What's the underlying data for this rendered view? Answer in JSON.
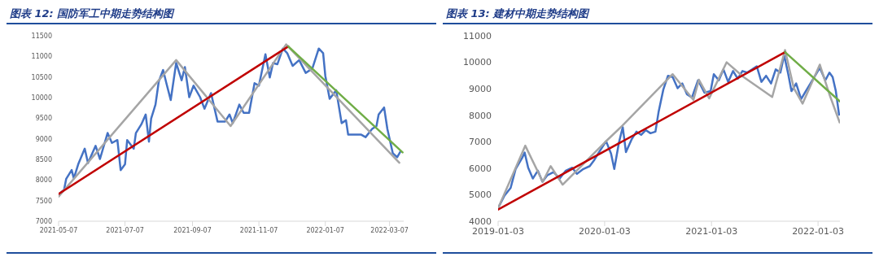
{
  "chart_data": [
    {
      "type": "line",
      "title": "图表 12:  国防军工中期走势结构图",
      "xlim": [
        "2021-05-07",
        "2022-03-20"
      ],
      "xticks": [
        "2021-05-07",
        "2021-07-07",
        "2021-09-07",
        "2021-11-07",
        "2022-01-07",
        "2022-03-07"
      ],
      "ylim": [
        7000,
        11500
      ],
      "yticks": [
        7000,
        7500,
        8000,
        8500,
        9000,
        9500,
        10000,
        10500,
        11000,
        11500
      ],
      "series": [
        {
          "color": "#4472c4",
          "x": [
            "2021-05-07",
            "2021-05-12",
            "2021-05-14",
            "2021-05-19",
            "2021-05-21",
            "2021-05-25",
            "2021-05-31",
            "2021-06-03",
            "2021-06-10",
            "2021-06-14",
            "2021-06-21",
            "2021-06-25",
            "2021-06-30",
            "2021-07-03",
            "2021-07-07",
            "2021-07-09",
            "2021-07-15",
            "2021-07-17",
            "2021-07-22",
            "2021-07-26",
            "2021-07-29",
            "2021-07-31",
            "2021-08-04",
            "2021-08-07",
            "2021-08-11",
            "2021-08-14",
            "2021-08-18",
            "2021-08-23",
            "2021-08-28",
            "2021-08-31",
            "2021-09-04",
            "2021-09-08",
            "2021-09-14",
            "2021-09-18",
            "2021-09-24",
            "2021-09-30",
            "2021-10-07",
            "2021-10-11",
            "2021-10-14",
            "2021-10-20",
            "2021-10-24",
            "2021-10-29",
            "2021-11-03",
            "2021-11-07",
            "2021-11-13",
            "2021-11-17",
            "2021-11-20",
            "2021-11-24",
            "2021-11-29",
            "2021-12-03",
            "2021-12-08",
            "2021-12-14",
            "2021-12-20",
            "2021-12-26",
            "2022-01-01",
            "2022-01-05",
            "2022-01-07",
            "2022-01-11",
            "2022-01-17",
            "2022-01-22",
            "2022-01-26",
            "2022-01-28",
            "2022-02-09",
            "2022-02-13",
            "2022-02-19",
            "2022-02-23",
            "2022-02-25",
            "2022-03-02",
            "2022-03-05",
            "2022-03-10",
            "2022-03-14",
            "2022-03-17"
          ],
          "values": [
            7650,
            7760,
            8030,
            8240,
            8040,
            8380,
            8760,
            8410,
            8830,
            8510,
            9140,
            8900,
            8970,
            8240,
            8380,
            8970,
            8760,
            9140,
            9350,
            9590,
            8930,
            9490,
            9830,
            10390,
            10670,
            10350,
            9940,
            10840,
            10420,
            10740,
            10010,
            10290,
            10010,
            9730,
            10110,
            9420,
            9420,
            9590,
            9380,
            9830,
            9630,
            9630,
            10350,
            10290,
            11050,
            10490,
            10840,
            10810,
            11190,
            11080,
            10770,
            10910,
            10600,
            10700,
            11190,
            11080,
            10530,
            9970,
            10180,
            9380,
            9450,
            9100,
            9100,
            9040,
            9240,
            9310,
            9590,
            9760,
            9240,
            8650,
            8550,
            8690
          ]
        },
        {
          "color": "#a5a5a5",
          "x": [
            "2021-05-07",
            "2021-08-23",
            "2021-10-12",
            "2021-12-02",
            "2022-03-16"
          ],
          "values": [
            7600,
            10910,
            9310,
            11290,
            8420
          ]
        },
        {
          "color": "#c00000",
          "x": [
            "2021-05-07",
            "2021-12-04"
          ],
          "values": [
            7660,
            11240
          ]
        },
        {
          "color": "#70ad47",
          "x": [
            "2021-12-04",
            "2022-03-19"
          ],
          "values": [
            11240,
            8670
          ]
        }
      ]
    },
    {
      "type": "line",
      "title": "图表 13:  建材中期走势结构图",
      "xlim": [
        "2019-01-03",
        "2022-03-19"
      ],
      "xticks": [
        "2019-01-03",
        "2020-01-03",
        "2021-01-03",
        "2022-01-03"
      ],
      "ylim": [
        4000,
        11000
      ],
      "yticks": [
        4000,
        5000,
        6000,
        7000,
        8000,
        9000,
        10000,
        11000
      ],
      "series": [
        {
          "color": "#4472c4",
          "x": [
            "2019-01-03",
            "2019-01-25",
            "2019-02-15",
            "2019-03-04",
            "2019-03-26",
            "2019-04-04",
            "2019-04-16",
            "2019-05-02",
            "2019-05-19",
            "2019-06-04",
            "2019-06-20",
            "2019-07-12",
            "2019-08-02",
            "2019-08-23",
            "2019-09-14",
            "2019-09-30",
            "2019-10-22",
            "2019-11-13",
            "2019-11-29",
            "2019-12-15",
            "2020-01-08",
            "2020-01-25",
            "2020-02-05",
            "2020-02-21",
            "2020-03-05",
            "2020-03-16",
            "2020-04-04",
            "2020-04-21",
            "2020-05-07",
            "2020-05-23",
            "2020-06-08",
            "2020-06-25",
            "2020-07-06",
            "2020-07-22",
            "2020-08-07",
            "2020-08-23",
            "2020-09-09",
            "2020-09-25",
            "2020-10-11",
            "2020-10-28",
            "2020-11-18",
            "2020-12-10",
            "2020-12-31",
            "2021-01-11",
            "2021-01-28",
            "2021-02-13",
            "2021-03-01",
            "2021-03-18",
            "2021-04-03",
            "2021-04-19",
            "2021-05-05",
            "2021-05-22",
            "2021-06-07",
            "2021-06-23",
            "2021-07-09",
            "2021-07-26",
            "2021-08-11",
            "2021-08-27",
            "2021-09-09",
            "2021-09-23",
            "2021-10-04",
            "2021-10-20",
            "2021-11-06",
            "2021-11-22",
            "2021-12-08",
            "2021-12-24",
            "2022-01-09",
            "2022-01-28",
            "2022-02-11",
            "2022-02-22",
            "2022-03-05",
            "2022-03-16"
          ],
          "values": [
            4500,
            4970,
            5260,
            5970,
            6380,
            6590,
            6020,
            5610,
            5910,
            5490,
            5730,
            5850,
            5610,
            5910,
            6020,
            5790,
            5970,
            6080,
            6320,
            6610,
            7020,
            6550,
            5970,
            6970,
            7550,
            6610,
            7080,
            7380,
            7260,
            7440,
            7320,
            7380,
            8140,
            8970,
            9490,
            9440,
            9020,
            9200,
            8790,
            8670,
            9320,
            8850,
            8910,
            9550,
            9320,
            9730,
            9260,
            9670,
            9380,
            9670,
            9610,
            9730,
            9850,
            9260,
            9490,
            9200,
            9730,
            9610,
            10260,
            9550,
            8910,
            9200,
            8610,
            8910,
            9200,
            9490,
            9790,
            9320,
            9610,
            9440,
            8910,
            8020
          ]
        },
        {
          "color": "#a5a5a5",
          "x": [
            "2019-01-03",
            "2019-04-06",
            "2019-06-05",
            "2019-07-02",
            "2019-08-12",
            "2020-01-03",
            "2020-03-04",
            "2020-08-23",
            "2020-11-02",
            "2020-11-21",
            "2020-12-26",
            "2021-02-24",
            "2021-04-23",
            "2021-07-30",
            "2021-09-12",
            "2021-10-12",
            "2021-11-11",
            "2022-01-09",
            "2022-02-11",
            "2022-03-18"
          ],
          "values": [
            4490,
            6850,
            5490,
            6080,
            5380,
            6970,
            7610,
            9550,
            8580,
            9340,
            8640,
            10000,
            9440,
            8690,
            10460,
            9020,
            8440,
            9910,
            8790,
            7730
          ]
        },
        {
          "color": "#c00000",
          "x": [
            "2019-01-03",
            "2021-09-12"
          ],
          "values": [
            4440,
            10380
          ]
        },
        {
          "color": "#70ad47",
          "x": [
            "2021-09-12",
            "2022-03-19"
          ],
          "values": [
            10380,
            8520
          ]
        }
      ]
    }
  ]
}
